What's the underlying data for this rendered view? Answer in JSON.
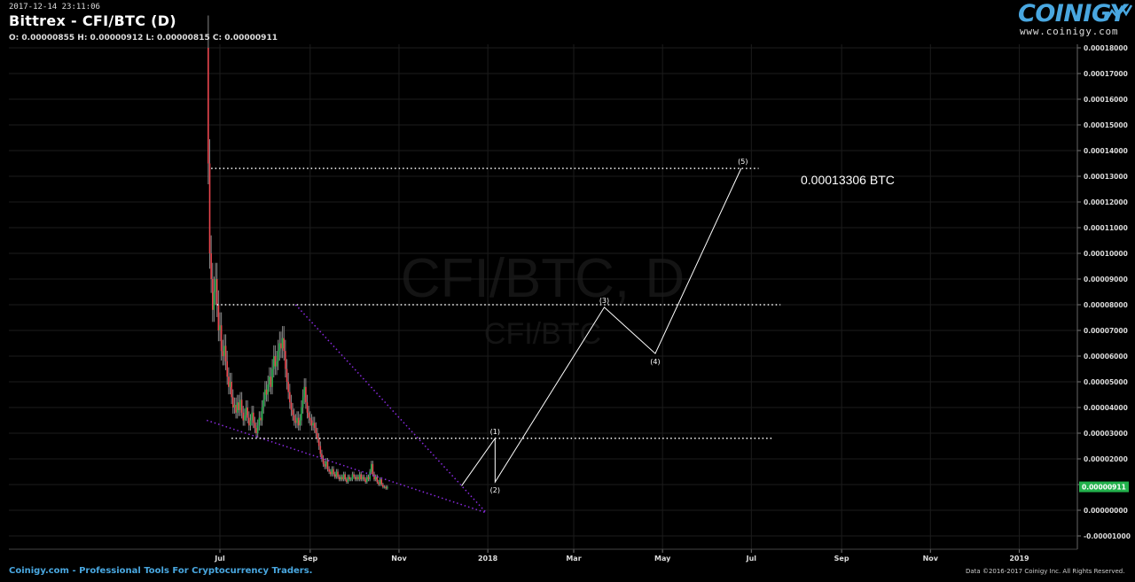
{
  "header": {
    "timestamp": "2017-12-14 23:11:06",
    "title": "Bittrex - CFI/BTC (D)",
    "ohlc": "O: 0.00000855 H: 0.00000912 L: 0.00000815 C: 0.00000911"
  },
  "logo": {
    "name": "COINIGY",
    "url": "www.coinigy.com"
  },
  "watermark": {
    "main": "CFI/BTC, D",
    "sub": "CFI/BTC"
  },
  "footer": {
    "left": "Coinigy.com - Professional Tools For Cryptocurrency Traders.",
    "right": "Data ©2016-2017 Coinigy Inc. All Rights Reserved."
  },
  "colors": {
    "bull": "#22b14c",
    "bear": "#e8454d",
    "wick": "#888888",
    "annotation": "#ffffff",
    "wedge": "#8a2be2",
    "price_badge": "#22b14c"
  },
  "chart_data": {
    "type": "candlestick",
    "title": "Bittrex - CFI/BTC (D)",
    "x_ticks": [
      "Jul",
      "Sep",
      "Nov",
      "2018",
      "Mar",
      "May",
      "Jul",
      "Sep",
      "Nov",
      "2019"
    ],
    "x_tick_dates": [
      "2017-07-01",
      "2017-09-01",
      "2017-11-01",
      "2018-01-01",
      "2018-03-01",
      "2018-05-01",
      "2018-07-01",
      "2018-09-01",
      "2018-11-01",
      "2019-01-01"
    ],
    "y_ticks": [
      "0.00018000",
      "0.00017000",
      "0.00016000",
      "0.00015000",
      "0.00014000",
      "0.00013000",
      "0.00012000",
      "0.00011000",
      "0.00010000",
      "0.00009000",
      "0.00008000",
      "0.00007000",
      "0.00006000",
      "0.00005000",
      "0.00004000",
      "0.00003000",
      "0.00002000",
      "0.00001000",
      "0.00000000",
      "-0.00001000"
    ],
    "ylim": [
      -1e-05,
      0.00018
    ],
    "last_price": "0.00000911",
    "last_price_value": 9.11e-06,
    "target_label": "0.00013306 BTC",
    "series": [
      {
        "start": "2017-06-23",
        "close": [
          0.000135,
          0.0001,
          9e-05,
          7.8e-05,
          8.5e-05,
          9e-05,
          8e-05,
          7e-05,
          7.2e-05,
          6.2e-05,
          6e-05,
          6.4e-05,
          5.8e-05,
          5.2e-05,
          4.8e-05,
          5e-05,
          4.4e-05,
          4e-05,
          4.1e-05,
          3.8e-05,
          4.2e-05,
          3.9e-05,
          4.3e-05,
          3.8e-05,
          3.5e-05,
          3.7e-05,
          4e-05,
          3.6e-05,
          3.3e-05,
          3.5e-05,
          3.8e-05,
          3.4e-05,
          3.2e-05,
          3e-05,
          3.3e-05,
          3.6e-05,
          3.5e-05,
          4e-05,
          4.3e-05,
          4.7e-05,
          4.5e-05,
          4.9e-05,
          5.2e-05,
          4.8e-05,
          5.5e-05,
          6e-05,
          5.6e-05,
          5.8e-05,
          6.2e-05,
          6.5e-05,
          6.3e-05,
          6.7e-05,
          6.2e-05,
          5.5e-05,
          5e-05,
          4.6e-05,
          4.2e-05,
          3.9e-05,
          3.7e-05,
          3.5e-05,
          3.4e-05,
          3.6e-05,
          3.3e-05,
          3.5e-05,
          4e-05,
          4.4e-05,
          4.8e-05,
          4.2e-05,
          3.8e-05,
          3.6e-05,
          3.5e-05,
          3.3e-05,
          3.4e-05,
          3.2e-05,
          3e-05,
          2.8e-05,
          2.5e-05,
          2.2e-05,
          2e-05,
          1.8e-05,
          1.7e-05,
          1.9e-05,
          1.6e-05,
          1.5e-05,
          1.4e-05,
          1.6e-05,
          1.4e-05,
          1.3e-05,
          1.5e-05,
          1.3e-05,
          1.2e-05,
          1.3e-05,
          1.2e-05,
          1.4e-05,
          1.2e-05,
          1.1e-05,
          1.3e-05,
          1.2e-05,
          1.2e-05,
          1.4e-05,
          1.3e-05,
          1.2e-05,
          1.3e-05,
          1.2e-05,
          1.4e-05,
          1.2e-05,
          1.3e-05,
          1.2e-05,
          1.1e-05,
          1.3e-05,
          1.2e-05,
          1.5e-05,
          1.8e-05,
          1.4e-05,
          1.2e-05,
          1.3e-05,
          1.1e-05,
          1e-05,
          1.2e-05,
          1e-05,
          9e-06,
          9.1e-06,
          8.5e-06,
          9.11e-06
        ]
      }
    ],
    "annotations": {
      "waves": [
        {
          "label": "(1)",
          "date": "2018-01-06",
          "value": 2.8e-05
        },
        {
          "label": "(2)",
          "date": "2018-01-06",
          "value": 1.1e-05
        },
        {
          "label": "(3)",
          "date": "2018-03-22",
          "value": 7.9e-05
        },
        {
          "label": "(4)",
          "date": "2018-04-26",
          "value": 6.1e-05
        },
        {
          "label": "(5)",
          "date": "2018-06-24",
          "value": 0.00013306
        }
      ],
      "wave_start": {
        "date": "2017-12-14",
        "value": 9.5e-06
      },
      "levels": [
        {
          "value": 0.00013306,
          "from": "2017-06-25",
          "to": "2018-07-06"
        },
        {
          "value": 8e-05,
          "from": "2017-06-29",
          "to": "2018-07-21"
        },
        {
          "value": 2.8e-05,
          "from": "2017-07-09",
          "to": "2018-07-16"
        }
      ],
      "wedge": [
        {
          "from": {
            "date": "2017-06-22",
            "value": 3.5e-05
          },
          "to": {
            "date": "2017-12-31",
            "value": -1e-06
          }
        },
        {
          "from": {
            "date": "2017-08-22",
            "value": 8e-05
          },
          "to": {
            "date": "2017-12-31",
            "value": -1e-06
          }
        }
      ]
    }
  }
}
